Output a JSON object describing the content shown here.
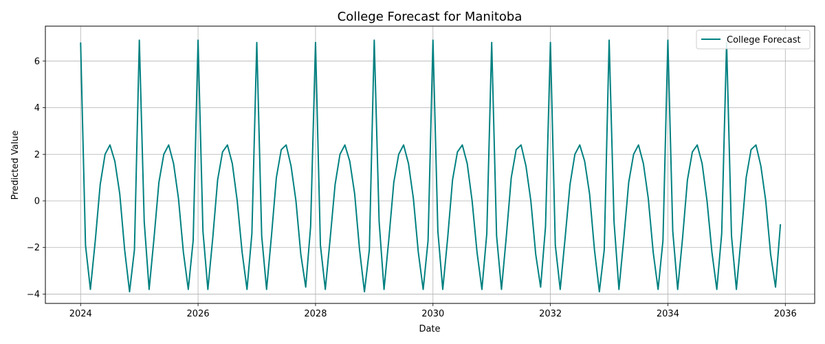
{
  "chart_data": {
    "type": "line",
    "title": "College Forecast for Manitoba",
    "xlabel": "Date",
    "ylabel": "Predicted Value",
    "xlim": [
      2023.4,
      2036.5
    ],
    "ylim": [
      -4.4,
      7.5
    ],
    "xticks": [
      2024,
      2026,
      2028,
      2030,
      2032,
      2034,
      2036
    ],
    "yticks": [
      -4,
      -2,
      0,
      2,
      4,
      6
    ],
    "grid": true,
    "legend_position": "top-right",
    "colors": {
      "line": "#008080",
      "grid": "#b0b0b0",
      "axes": "#000000"
    },
    "series": [
      {
        "name": "College Forecast",
        "start_year": 2024,
        "monthly_values": [
          6.8,
          -1.9,
          -3.8,
          -1.7,
          0.7,
          2.0,
          2.4,
          1.7,
          0.3,
          -2.1,
          -3.9,
          -2.1,
          6.9,
          -0.9,
          -3.8,
          -1.6,
          0.8,
          2.0,
          2.4,
          1.6,
          0.1,
          -2.2,
          -3.8,
          -1.7,
          6.9,
          -1.3,
          -3.8,
          -1.6,
          0.9,
          2.1,
          2.4,
          1.6,
          0.0,
          -2.2,
          -3.8,
          -1.4,
          6.8,
          -1.5,
          -3.8,
          -1.5,
          1.0,
          2.2,
          2.4,
          1.5,
          0.0,
          -2.3,
          -3.7,
          -1.1,
          6.8,
          -1.9,
          -3.8,
          -1.6,
          0.7,
          2.0,
          2.4,
          1.7,
          0.3,
          -2.1,
          -3.9,
          -2.1,
          6.9,
          -0.9,
          -3.8,
          -1.6,
          0.8,
          2.0,
          2.4,
          1.6,
          0.1,
          -2.2,
          -3.8,
          -1.7,
          6.9,
          -1.3,
          -3.8,
          -1.6,
          0.9,
          2.1,
          2.4,
          1.6,
          0.0,
          -2.2,
          -3.8,
          -1.4,
          6.8,
          -1.5,
          -3.8,
          -1.5,
          1.0,
          2.2,
          2.4,
          1.5,
          0.0,
          -2.3,
          -3.7,
          -1.1,
          6.8,
          -1.9,
          -3.8,
          -1.6,
          0.7,
          2.0,
          2.4,
          1.7,
          0.3,
          -2.1,
          -3.9,
          -2.1,
          6.9,
          -0.9,
          -3.8,
          -1.6,
          0.8,
          2.0,
          2.4,
          1.6,
          0.1,
          -2.2,
          -3.8,
          -1.7,
          6.9,
          -1.3,
          -3.8,
          -1.6,
          0.9,
          2.1,
          2.4,
          1.6,
          0.0,
          -2.2,
          -3.8,
          -1.4,
          6.8,
          -1.5,
          -3.8,
          -1.5,
          1.0,
          2.2,
          2.4,
          1.5,
          0.0,
          -2.3,
          -3.7,
          -1.0
        ]
      }
    ]
  }
}
